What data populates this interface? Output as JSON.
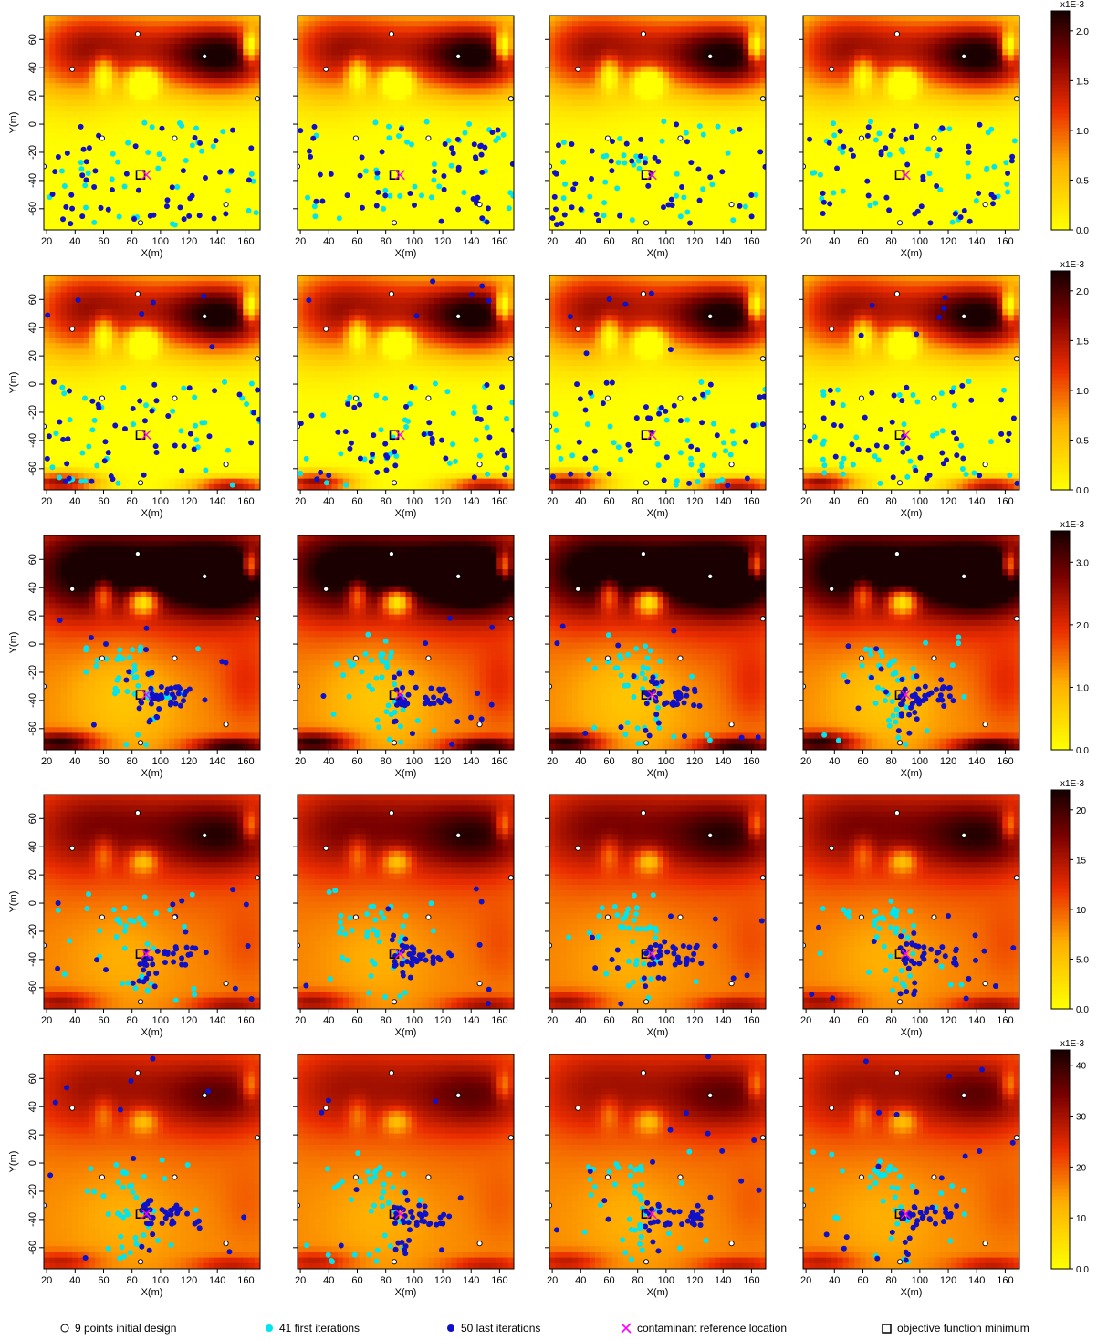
{
  "chart_data": {
    "type": "heatmap",
    "layout": {
      "rows": 5,
      "cols": 4
    },
    "xlabel": "X(m)",
    "ylabel": "Y(m)",
    "xlim": [
      18,
      170
    ],
    "ylim": [
      -75,
      77
    ],
    "xticks": [
      20,
      40,
      60,
      80,
      100,
      120,
      140,
      160
    ],
    "yticks": [
      -60,
      -40,
      -20,
      0,
      20,
      40,
      60
    ],
    "reference_location": {
      "x": 90,
      "y": -36
    },
    "objective_minimum": {
      "x": 86,
      "y": -36
    },
    "initial_design": [
      {
        "x": 38,
        "y": 39
      },
      {
        "x": 84,
        "y": 64
      },
      {
        "x": 131,
        "y": 48
      },
      {
        "x": 168,
        "y": 18
      },
      {
        "x": 59,
        "y": -10
      },
      {
        "x": 110,
        "y": -10
      },
      {
        "x": 18,
        "y": -30
      },
      {
        "x": 146,
        "y": -57
      },
      {
        "x": 86,
        "y": -70
      }
    ],
    "colorbars": [
      {
        "unit": "x1E-3",
        "ticks": [
          "0.0",
          "0.5",
          "1.0",
          "1.5",
          "2.0"
        ],
        "max": 2.2
      },
      {
        "unit": "x1E-3",
        "ticks": [
          "0.0",
          "0.5",
          "1.0",
          "1.5",
          "2.0"
        ],
        "max": 2.2
      },
      {
        "unit": "x1E-3",
        "ticks": [
          "0.0",
          "1.0",
          "2.0",
          "3.0"
        ],
        "max": 3.5
      },
      {
        "unit": "x1E-3",
        "ticks": [
          "0.0",
          "5.0",
          "10",
          "15",
          "20"
        ],
        "max": 22
      },
      {
        "unit": "x1E-3",
        "ticks": [
          "0.0",
          "10",
          "20",
          "30",
          "40"
        ],
        "max": 43
      }
    ],
    "legend": [
      {
        "symbol": "open-circle",
        "label": "9 points initial design"
      },
      {
        "symbol": "cyan-dot",
        "label": "41 first iterations"
      },
      {
        "symbol": "blue-dot",
        "label": "50 last iterations"
      },
      {
        "symbol": "magenta-x",
        "label": "contaminant reference location"
      },
      {
        "symbol": "open-square",
        "label": "objective function minimum"
      }
    ],
    "colors": {
      "heat_low": "#ffff00",
      "heat_mid": "#ff8c00",
      "heat_high": "#e31a1c",
      "heat_max": "#1a0000",
      "first_iterations": "#00e5ee",
      "last_iterations": "#1010c8",
      "reference": "#ff00ff"
    }
  }
}
